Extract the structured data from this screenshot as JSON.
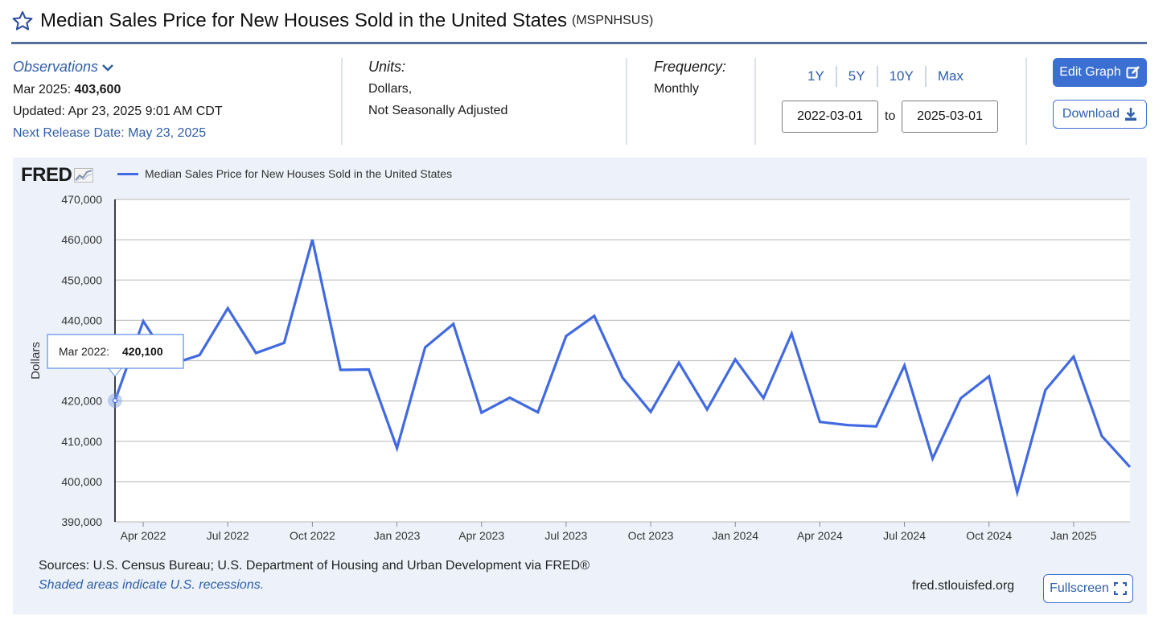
{
  "header": {
    "title": "Median Sales Price for New Houses Sold in the United States",
    "series_id": "(MSPNHSUS)"
  },
  "observations": {
    "toggle_label": "Observations",
    "latest_date": "Mar 2025:",
    "latest_value": "403,600",
    "updated": "Updated: Apr 23, 2025 9:01 AM CDT",
    "next_release": "Next Release Date: May 23, 2025"
  },
  "units": {
    "label": "Units:",
    "line1": "Dollars,",
    "line2": "Not Seasonally Adjusted"
  },
  "frequency": {
    "label": "Frequency:",
    "value": "Monthly"
  },
  "range_buttons": [
    "1Y",
    "5Y",
    "10Y",
    "Max"
  ],
  "date_range": {
    "start": "2022-03-01",
    "end": "2025-03-01",
    "to_label": "to"
  },
  "actions": {
    "edit_label": "Edit Graph",
    "download_label": "Download",
    "fullscreen_label": "Fullscreen"
  },
  "footer": {
    "sources": "Sources: U.S. Census Bureau; U.S. Department of Housing and Urban Development via FRED®",
    "recession_note": "Shaded areas indicate U.S. recessions.",
    "site": "fred.stlouisfed.org"
  },
  "tooltip": {
    "date": "Mar 2022:",
    "value": "420,100"
  },
  "colors": {
    "accent": "#3b6fd1",
    "line": "#4169e1",
    "link": "#2f5ea8",
    "panel": "#edf2fa"
  },
  "chart_data": {
    "type": "line",
    "logo": "FRED",
    "legend": [
      "Median Sales Price for New Houses Sold in the United States"
    ],
    "ylabel": "Dollars",
    "ylim": [
      390000,
      470000
    ],
    "yticks": [
      390000,
      400000,
      410000,
      420000,
      430000,
      440000,
      450000,
      460000,
      470000
    ],
    "ytick_labels": [
      "390,000",
      "400,000",
      "410,000",
      "420,000",
      "430,000",
      "440,000",
      "450,000",
      "460,000",
      "470,000"
    ],
    "xtick_labels": [
      "Apr 2022",
      "Jul 2022",
      "Oct 2022",
      "Jan 2023",
      "Apr 2023",
      "Jul 2023",
      "Oct 2023",
      "Jan 2024",
      "Apr 2024",
      "Jul 2024",
      "Oct 2024",
      "Jan 2025"
    ],
    "xtick_dates": [
      "2022-04",
      "2022-07",
      "2022-10",
      "2023-01",
      "2023-04",
      "2023-07",
      "2023-10",
      "2024-01",
      "2024-04",
      "2024-07",
      "2024-10",
      "2025-01"
    ],
    "grid": true,
    "series": [
      {
        "name": "Median Sales Price for New Houses Sold in the United States",
        "x": [
          "2022-03",
          "2022-04",
          "2022-05",
          "2022-06",
          "2022-07",
          "2022-08",
          "2022-09",
          "2022-10",
          "2022-11",
          "2022-12",
          "2023-01",
          "2023-02",
          "2023-03",
          "2023-04",
          "2023-05",
          "2023-06",
          "2023-07",
          "2023-08",
          "2023-09",
          "2023-10",
          "2023-11",
          "2023-12",
          "2024-01",
          "2024-02",
          "2024-03",
          "2024-04",
          "2024-05",
          "2024-06",
          "2024-07",
          "2024-08",
          "2024-09",
          "2024-10",
          "2024-11",
          "2024-12",
          "2025-01",
          "2025-02",
          "2025-03"
        ],
        "values": [
          420100,
          439800,
          429100,
          431400,
          443000,
          431900,
          434400,
          460000,
          427700,
          427800,
          408300,
          433300,
          439100,
          417100,
          420800,
          417200,
          436100,
          441100,
          425800,
          417300,
          429500,
          417900,
          430300,
          420700,
          436700,
          414800,
          414000,
          413700,
          428800,
          405700,
          420700,
          426100,
          397300,
          422700,
          431000,
          411300,
          403600
        ]
      }
    ]
  }
}
